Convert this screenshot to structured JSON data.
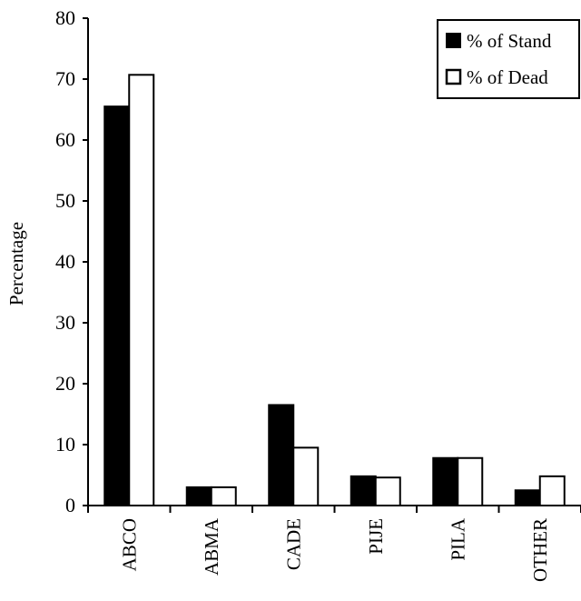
{
  "chart_data": {
    "type": "bar",
    "title": "",
    "xlabel": "",
    "ylabel": "Percentage",
    "ylim": [
      0,
      80
    ],
    "yticks": [
      0,
      10,
      20,
      30,
      40,
      50,
      60,
      70,
      80
    ],
    "categories": [
      "ABCO",
      "ABMA",
      "CADE",
      "PIJE",
      "PILA",
      "OTHER"
    ],
    "series": [
      {
        "name": "% of Stand",
        "color": "#000000",
        "values": [
          65.5,
          3.0,
          16.5,
          4.8,
          7.8,
          2.5
        ]
      },
      {
        "name": "% of Dead",
        "color": "#ffffff",
        "values": [
          70.7,
          3.0,
          9.5,
          4.6,
          7.8,
          4.8
        ]
      }
    ],
    "legend": "top-right",
    "grid": false
  }
}
